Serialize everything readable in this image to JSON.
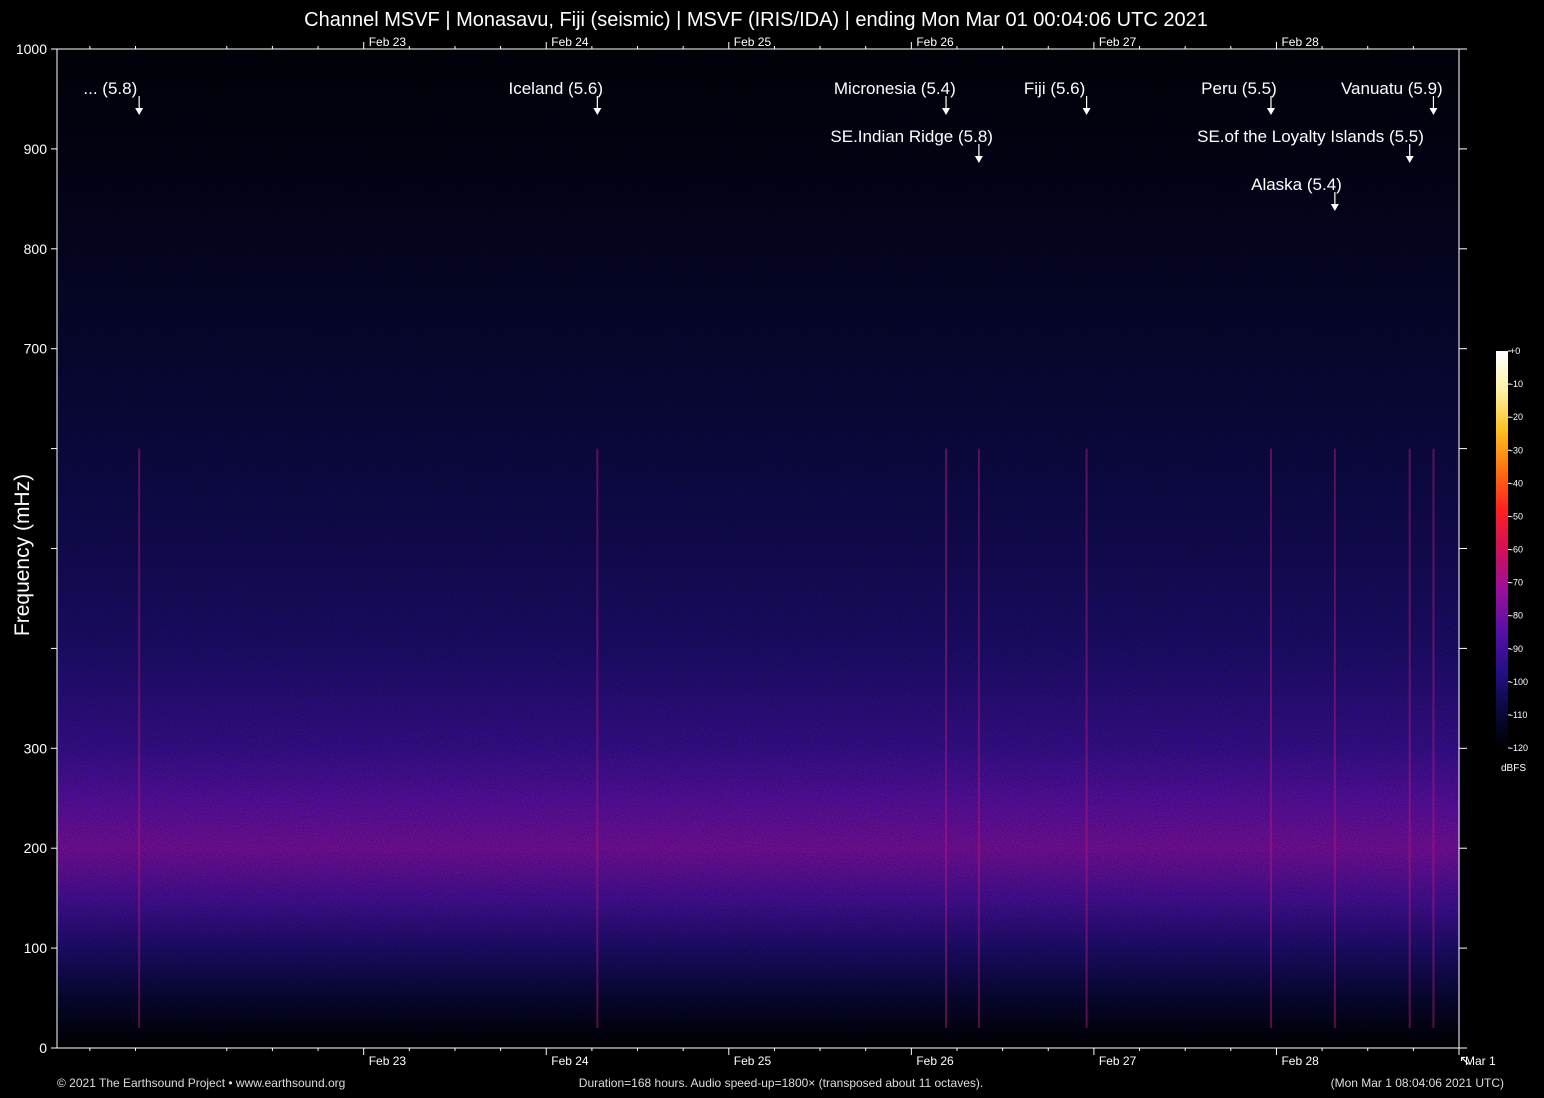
{
  "title": "Channel MSVF | Monasavu, Fiji (seismic) | MSVF (IRIS/IDA) | ending Mon Mar 01 00:04:06 UTC 2021",
  "footer": {
    "copyright": "© 2021 The Earthsound Project • www.earthsound.org",
    "duration": "Duration=168 hours. Audio speed-up=1800× (transposed about 11 octaves).",
    "local_time": "(Mon Mar  1 08:04:06 2021 UTC)"
  },
  "colors": {
    "background": "#000000",
    "band": "#c0106f",
    "noise": "#1a0c5a",
    "text": "#ffffff"
  },
  "chart_data": {
    "type": "heatmap",
    "title": "Channel MSVF | Monasavu, Fiji (seismic) | MSVF (IRIS/IDA) | ending Mon Mar 01 00:04:06 UTC 2021",
    "ylabel": "Frequency (mHz)",
    "xlabel": "",
    "x_unit": "days since Feb 22 00:00 UTC",
    "xlim": [
      -0.68,
      7.0
    ],
    "ylim": [
      0,
      1000
    ],
    "y_ticks": [
      0,
      100,
      200,
      300,
      400,
      500,
      600,
      700,
      800,
      900,
      1000
    ],
    "y_tick_labels": [
      "0",
      "100",
      "200",
      "300",
      "",
      "",
      "",
      "700",
      "800",
      "900",
      "1000"
    ],
    "x_ticks": [
      {
        "label": "Feb 23",
        "x": 1.0
      },
      {
        "label": "Feb 24",
        "x": 2.0
      },
      {
        "label": "Feb 25",
        "x": 3.0
      },
      {
        "label": "Feb 26",
        "x": 4.0
      },
      {
        "label": "Feb 27",
        "x": 5.0
      },
      {
        "label": "Feb 28",
        "x": 6.0
      }
    ],
    "x_ticks_bottom_extra": [
      {
        "label": "Mar  1",
        "x": 7.0
      }
    ],
    "intensity_profile": {
      "frequency_mhz": [
        0,
        50,
        100,
        150,
        200,
        250,
        300,
        400,
        500,
        600,
        700,
        800,
        900,
        1000
      ],
      "level_dbfs": [
        -120,
        -110,
        -100,
        -88,
        -78,
        -84,
        -92,
        -100,
        -104,
        -107,
        -110,
        -113,
        -116,
        -118
      ]
    },
    "events": [
      {
        "label": "... (5.8)",
        "x": -0.23,
        "row": 0
      },
      {
        "label": "Iceland (5.6)",
        "x": 2.28,
        "row": 0
      },
      {
        "label": "Micronesia (5.4)",
        "x": 4.19,
        "row": 0
      },
      {
        "label": "SE.Indian Ridge (5.8)",
        "x": 4.37,
        "row": 1
      },
      {
        "label": "Fiji (5.6)",
        "x": 4.96,
        "row": 0
      },
      {
        "label": "Peru (5.5)",
        "x": 5.97,
        "row": 0
      },
      {
        "label": "SE.of the Loyalty Islands (5.5)",
        "x": 6.73,
        "row": 1
      },
      {
        "label": "Alaska (5.4)",
        "x": 6.32,
        "row": 2
      },
      {
        "label": "Vanuatu (5.9)",
        "x": 6.86,
        "row": 0
      }
    ],
    "colorbar": {
      "label": "dBFS",
      "ticks": [
        0,
        -10,
        -20,
        -30,
        -40,
        -50,
        -60,
        -70,
        -80,
        -90,
        -100,
        -110,
        -120
      ],
      "tick_labels": [
        "+0",
        "-10",
        "-20",
        "-30",
        "-40",
        "-50",
        "-60",
        "-70",
        "-80",
        "-90",
        "-100",
        "-110",
        "-120"
      ],
      "stops": [
        "#ffffff",
        "#fff2a0",
        "#ffc020",
        "#ff7010",
        "#ff2020",
        "#d0105a",
        "#9a109a",
        "#5a10a8",
        "#28108a",
        "#0a0a40",
        "#000000"
      ]
    }
  }
}
